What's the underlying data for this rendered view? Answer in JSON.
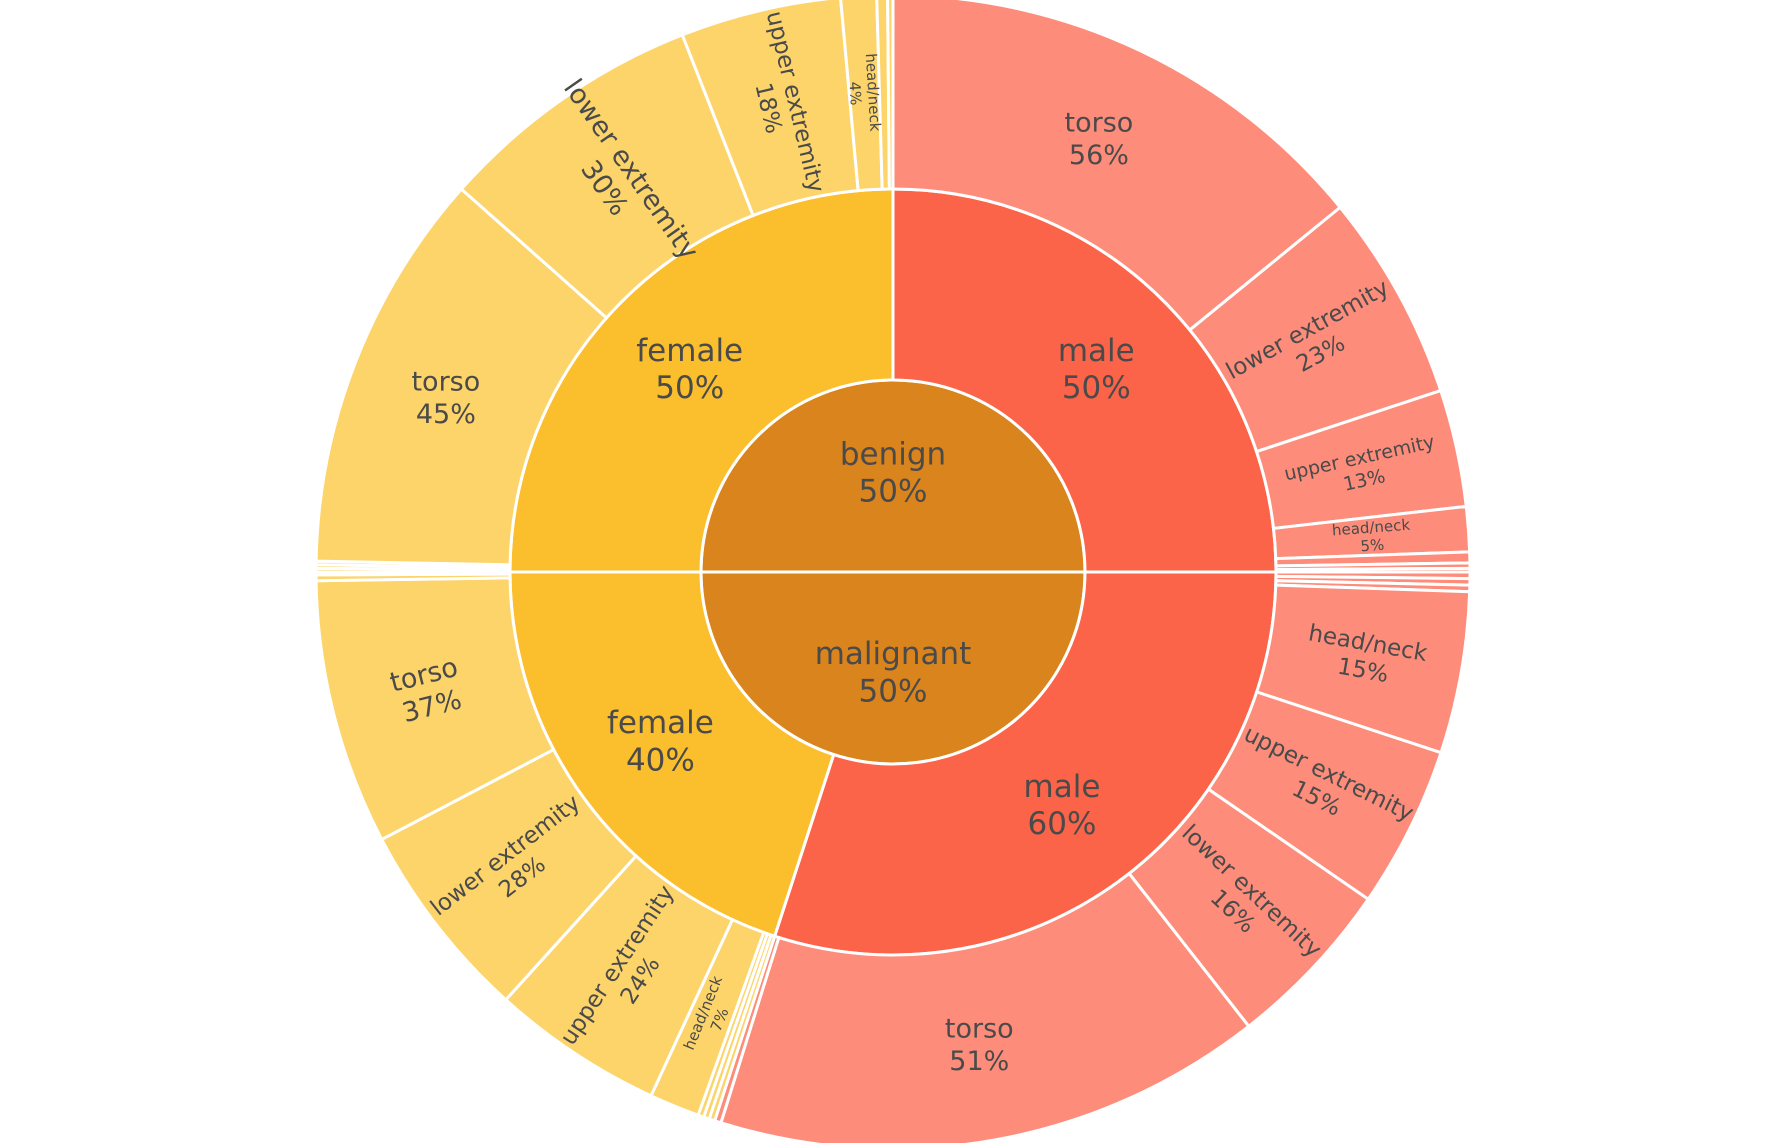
{
  "chart_data": {
    "type": "sunburst",
    "colors": {
      "benign": "#da841d",
      "malignant": "#da841d",
      "male": "#fb6448",
      "female": "#fbbe2d",
      "male_leaf": "#fd8c7a",
      "female_leaf": "#fcd46a",
      "border": "#ffffff",
      "text": "#4a4a4a"
    },
    "root_order": [
      "malignant",
      "benign"
    ],
    "nodes": [
      {
        "label": "benign",
        "pct": "50%",
        "value": 0.5,
        "children": [
          {
            "label": "female",
            "pct": "50%",
            "value": 0.5,
            "color": "female",
            "children": [
              {
                "label": "unlabeled",
                "pct": "",
                "value": 0.004,
                "show": false
              },
              {
                "label": "unlabeled",
                "pct": "",
                "value": 0.004,
                "show": false
              },
              {
                "label": "unlabeled",
                "pct": "",
                "value": 0.004,
                "show": false
              },
              {
                "label": "torso",
                "pct": "45%",
                "value": 0.45,
                "show": true
              },
              {
                "label": "lower extremity",
                "pct": "30%",
                "value": 0.3,
                "show": true
              },
              {
                "label": "upper extremity",
                "pct": "18%",
                "value": 0.18,
                "show": true
              },
              {
                "label": "head/neck",
                "pct": "4%",
                "value": 0.04,
                "show": true
              },
              {
                "label": "unlabeled",
                "pct": "",
                "value": 0.012,
                "show": false
              },
              {
                "label": "unlabeled",
                "pct": "",
                "value": 0.006,
                "show": false
              }
            ]
          },
          {
            "label": "male",
            "pct": "50%",
            "value": 0.5,
            "color": "male",
            "children": [
              {
                "label": "torso",
                "pct": "56%",
                "value": 0.56,
                "show": true
              },
              {
                "label": "lower extremity",
                "pct": "23%",
                "value": 0.23,
                "show": true
              },
              {
                "label": "upper extremity",
                "pct": "13%",
                "value": 0.13,
                "show": true
              },
              {
                "label": "head/neck",
                "pct": "5%",
                "value": 0.05,
                "show": true
              },
              {
                "label": "unlabeled",
                "pct": "",
                "value": 0.012,
                "show": false
              },
              {
                "label": "unlabeled",
                "pct": "",
                "value": 0.006,
                "show": false
              },
              {
                "label": "unlabeled",
                "pct": "",
                "value": 0.004,
                "show": false
              }
            ]
          }
        ]
      },
      {
        "label": "malignant",
        "pct": "50%",
        "value": 0.5,
        "children": [
          {
            "label": "male",
            "pct": "60%",
            "value": 0.6,
            "color": "male",
            "children": [
              {
                "label": "unlabeled",
                "pct": "",
                "value": 0.006,
                "show": false
              },
              {
                "label": "unlabeled",
                "pct": "",
                "value": 0.006,
                "show": false
              },
              {
                "label": "unlabeled",
                "pct": "",
                "value": 0.006,
                "show": false
              },
              {
                "label": "head/neck",
                "pct": "15%",
                "value": 0.15,
                "show": true
              },
              {
                "label": "upper extremity",
                "pct": "15%",
                "value": 0.15,
                "show": true
              },
              {
                "label": "lower extremity",
                "pct": "16%",
                "value": 0.16,
                "show": true
              },
              {
                "label": "torso",
                "pct": "51%",
                "value": 0.51,
                "show": true
              },
              {
                "label": "unlabeled",
                "pct": "",
                "value": 0.006,
                "show": false
              }
            ]
          },
          {
            "label": "female",
            "pct": "40%",
            "value": 0.4,
            "color": "female",
            "children": [
              {
                "label": "unlabeled",
                "pct": "",
                "value": 0.008,
                "show": false
              },
              {
                "label": "unlabeled",
                "pct": "",
                "value": 0.008,
                "show": false
              },
              {
                "label": "unlabeled",
                "pct": "",
                "value": 0.008,
                "show": false
              },
              {
                "label": "head/neck",
                "pct": "7%",
                "value": 0.07,
                "show": true
              },
              {
                "label": "upper extremity",
                "pct": "24%",
                "value": 0.24,
                "show": true
              },
              {
                "label": "lower extremity",
                "pct": "28%",
                "value": 0.28,
                "show": true
              },
              {
                "label": "torso",
                "pct": "37%",
                "value": 0.37,
                "show": true
              },
              {
                "label": "unlabeled",
                "pct": "",
                "value": 0.008,
                "show": false
              },
              {
                "label": "unlabeled",
                "pct": "",
                "value": 0.004,
                "show": false
              }
            ]
          }
        ]
      }
    ]
  }
}
